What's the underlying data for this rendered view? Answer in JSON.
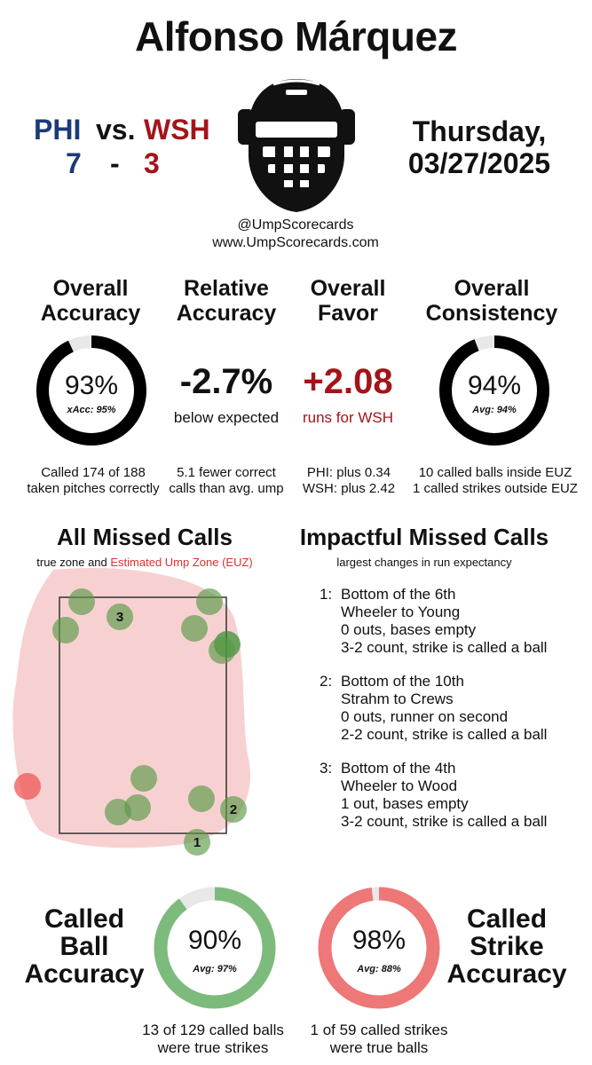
{
  "header": {
    "umpire_name": "Alfonso Márquez",
    "away_team": "PHI",
    "vs": "vs.",
    "home_team": "WSH",
    "away_score": "7",
    "dash": "-",
    "home_score": "3",
    "day": "Thursday,",
    "date": "03/27/2025",
    "handle": "@UmpScorecards",
    "website": "www.UmpScorecards.com"
  },
  "stats": {
    "overall_accuracy": {
      "title_line1": "Overall",
      "title_line2": "Accuracy",
      "value": "93%",
      "sub": "xAcc: 95%",
      "percent": 93,
      "detail_line1": "Called 174 of 188",
      "detail_line2": "taken pitches correctly"
    },
    "relative_accuracy": {
      "title_line1": "Relative",
      "title_line2": "Accuracy",
      "value": "-2.7%",
      "sub": "below expected",
      "detail_line1": "5.1 fewer correct",
      "detail_line2": "calls than avg. ump"
    },
    "overall_favor": {
      "title_line1": "Overall",
      "title_line2": "Favor",
      "value": "+2.08",
      "sub": "runs for WSH",
      "detail_line1": "PHI: plus 0.34",
      "detail_line2": "WSH: plus 2.42"
    },
    "overall_consistency": {
      "title_line1": "Overall",
      "title_line2": "Consistency",
      "value": "94%",
      "sub": "Avg: 94%",
      "percent": 94,
      "detail_line1": "10 called balls inside EUZ",
      "detail_line2": "1 called strikes outside EUZ"
    }
  },
  "missed_calls": {
    "title": "All Missed Calls",
    "sub_prefix": "true zone and ",
    "sub_highlight": "Estimated Ump Zone (EUZ)",
    "pitch_labels": [
      "1",
      "2",
      "3"
    ]
  },
  "impactful": {
    "title": "Impactful Missed Calls",
    "sub": "largest changes in run expectancy",
    "items": [
      {
        "num": "1:",
        "line1": "Bottom of the 6th",
        "line2": "Wheeler to Young",
        "line3": "0 outs, bases empty",
        "line4": "3-2 count, strike is called a ball"
      },
      {
        "num": "2:",
        "line1": "Bottom of the 10th",
        "line2": "Strahm to Crews",
        "line3": "0 outs, runner on second",
        "line4": "2-2 count, strike is called a ball"
      },
      {
        "num": "3:",
        "line1": "Bottom of the 4th",
        "line2": "Wheeler to Wood",
        "line3": "1 out, bases empty",
        "line4": "3-2 count, strike is called a ball"
      }
    ]
  },
  "called_ball": {
    "label_line1": "Called",
    "label_line2": "Ball",
    "label_line3": "Accuracy",
    "value": "90%",
    "sub": "Avg: 97%",
    "percent": 90,
    "detail_line1": "13 of 129 called balls",
    "detail_line2": "were true strikes"
  },
  "called_strike": {
    "label_line1": "Called",
    "label_line2": "Strike",
    "label_line3": "Accuracy",
    "value": "98%",
    "sub": "Avg: 88%",
    "percent": 98,
    "detail_line1": "1 of 59 called strikes",
    "detail_line2": "were true balls"
  },
  "colors": {
    "phi": "#1a3a7a",
    "wsh": "#a31419",
    "ring_dark": "#000000",
    "ball_green": "#7dbb7d",
    "strike_red": "#ee7777",
    "euz_fill": "#f7cfcf"
  }
}
